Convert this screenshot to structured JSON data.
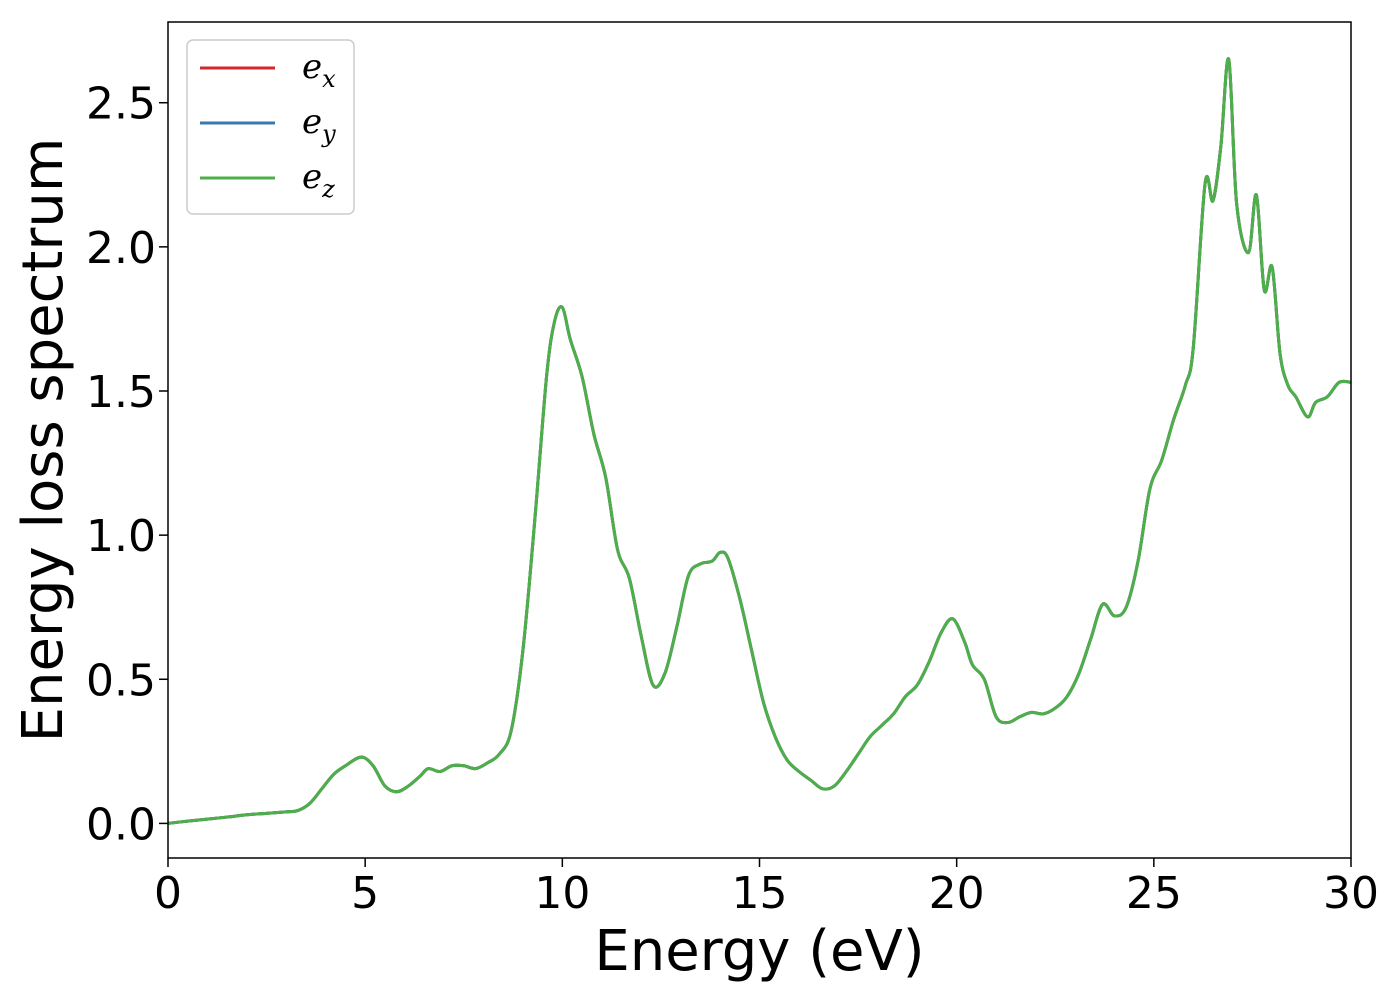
{
  "chart_data": {
    "type": "line",
    "xlabel": "Energy (eV)",
    "ylabel": "Energy loss spectrum",
    "xlim": [
      0,
      30
    ],
    "ylim": [
      -0.12,
      2.78
    ],
    "xticks": [
      0,
      5,
      10,
      15,
      20,
      25,
      30
    ],
    "yticks": [
      0.0,
      0.5,
      1.0,
      1.5,
      2.0,
      2.5
    ],
    "xtick_labels": [
      "0",
      "5",
      "10",
      "15",
      "20",
      "25",
      "30"
    ],
    "ytick_labels": [
      "0.0",
      "0.5",
      "1.0",
      "1.5",
      "2.0",
      "2.5"
    ],
    "grid": false,
    "legend_position": "top-left",
    "series": [
      {
        "name": "e_x",
        "legend_base": "e",
        "legend_sub": "x",
        "color": "#d62728"
      },
      {
        "name": "e_y",
        "legend_base": "e",
        "legend_sub": "y",
        "color": "#3a78b0"
      },
      {
        "name": "e_z",
        "legend_base": "e",
        "legend_sub": "z",
        "color": "#4daf4a"
      }
    ],
    "x": [
      0,
      0.5,
      1.0,
      1.5,
      2.0,
      2.5,
      3.0,
      3.3,
      3.6,
      3.9,
      4.2,
      4.5,
      4.9,
      5.2,
      5.5,
      5.8,
      6.1,
      6.4,
      6.6,
      6.9,
      7.2,
      7.5,
      7.8,
      8.1,
      8.4,
      8.7,
      9.0,
      9.3,
      9.6,
      9.8,
      10.0,
      10.2,
      10.5,
      10.8,
      11.1,
      11.4,
      11.7,
      12.0,
      12.3,
      12.6,
      12.9,
      13.2,
      13.5,
      13.8,
      14.0,
      14.2,
      14.5,
      14.8,
      15.1,
      15.4,
      15.7,
      16.0,
      16.3,
      16.6,
      16.9,
      17.2,
      17.5,
      17.8,
      18.1,
      18.4,
      18.7,
      19.0,
      19.3,
      19.6,
      19.9,
      20.2,
      20.4,
      20.7,
      21.0,
      21.3,
      21.6,
      21.9,
      22.2,
      22.5,
      22.8,
      23.1,
      23.4,
      23.7,
      24.0,
      24.3,
      24.6,
      24.9,
      25.2,
      25.5,
      25.8,
      26.0,
      26.3,
      26.5,
      26.7,
      26.9,
      27.1,
      27.4,
      27.6,
      27.8,
      28.0,
      28.2,
      28.4,
      28.6,
      28.9,
      29.1,
      29.4,
      29.7,
      30.0
    ],
    "y": [
      0.0,
      0.008,
      0.015,
      0.022,
      0.03,
      0.035,
      0.04,
      0.045,
      0.07,
      0.12,
      0.17,
      0.2,
      0.23,
      0.2,
      0.13,
      0.11,
      0.13,
      0.165,
      0.19,
      0.18,
      0.2,
      0.2,
      0.19,
      0.21,
      0.24,
      0.32,
      0.6,
      1.05,
      1.55,
      1.74,
      1.79,
      1.68,
      1.55,
      1.35,
      1.2,
      0.95,
      0.85,
      0.65,
      0.48,
      0.52,
      0.68,
      0.86,
      0.9,
      0.91,
      0.94,
      0.92,
      0.78,
      0.6,
      0.42,
      0.3,
      0.22,
      0.18,
      0.15,
      0.12,
      0.13,
      0.18,
      0.24,
      0.3,
      0.34,
      0.38,
      0.44,
      0.48,
      0.56,
      0.66,
      0.71,
      0.63,
      0.55,
      0.5,
      0.37,
      0.35,
      0.37,
      0.385,
      0.38,
      0.4,
      0.44,
      0.52,
      0.64,
      0.76,
      0.72,
      0.75,
      0.91,
      1.16,
      1.26,
      1.4,
      1.52,
      1.65,
      2.22,
      2.16,
      2.35,
      2.65,
      2.15,
      1.98,
      2.18,
      1.85,
      1.93,
      1.63,
      1.52,
      1.48,
      1.41,
      1.46,
      1.48,
      1.53,
      1.53
    ]
  }
}
